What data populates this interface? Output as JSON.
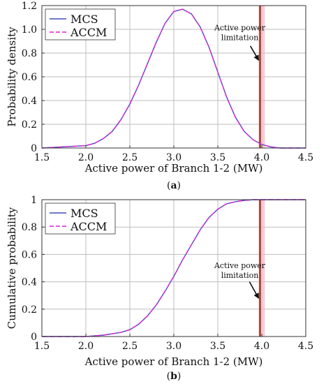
{
  "colors": {
    "mcs": "#3a4fbf",
    "accm": "#e01fd0",
    "limit_line": "#8a2a0a",
    "limit_band": "#f4b6c8"
  },
  "chart_data": [
    {
      "id": "a",
      "type": "line",
      "caption_letter": "a",
      "xlabel": "Active power of Branch 1-2 (MW)",
      "ylabel": "Probability density",
      "xlim": [
        1.5,
        4.5
      ],
      "ylim": [
        0,
        1.2
      ],
      "xticks": [
        1.5,
        2.0,
        2.5,
        3.0,
        3.5,
        4.0,
        4.5
      ],
      "xtick_labels": [
        "1.5",
        "2.0",
        "2.5",
        "3.0",
        "3.5",
        "4.0",
        "4.5"
      ],
      "yticks": [
        0,
        0.2,
        0.4,
        0.6,
        0.8,
        1.0,
        1.2
      ],
      "ytick_labels": [
        "0",
        "0.2",
        "0.4",
        "0.6",
        "0.8",
        "1.0",
        "1.2"
      ],
      "grid": true,
      "legend_position": "top-left",
      "series": [
        {
          "name": "MCS",
          "style": "solid",
          "x": [
            1.5,
            2.0,
            2.1,
            2.2,
            2.3,
            2.4,
            2.5,
            2.6,
            2.7,
            2.8,
            2.9,
            3.0,
            3.1,
            3.2,
            3.3,
            3.4,
            3.5,
            3.6,
            3.7,
            3.8,
            3.9,
            4.0,
            4.1,
            4.2,
            4.5
          ],
          "y": [
            0.0,
            0.02,
            0.04,
            0.08,
            0.14,
            0.24,
            0.37,
            0.53,
            0.71,
            0.89,
            1.05,
            1.15,
            1.17,
            1.13,
            1.02,
            0.85,
            0.64,
            0.43,
            0.26,
            0.14,
            0.07,
            0.03,
            0.01,
            0.0,
            0.0
          ]
        },
        {
          "name": "ACCM",
          "style": "dashed",
          "x": [
            1.5,
            2.0,
            2.1,
            2.2,
            2.3,
            2.4,
            2.5,
            2.6,
            2.7,
            2.8,
            2.9,
            3.0,
            3.1,
            3.2,
            3.3,
            3.4,
            3.5,
            3.6,
            3.7,
            3.8,
            3.9,
            4.0,
            4.1,
            4.2,
            4.5
          ],
          "y": [
            0.0,
            0.02,
            0.04,
            0.08,
            0.14,
            0.24,
            0.37,
            0.53,
            0.71,
            0.89,
            1.05,
            1.15,
            1.17,
            1.13,
            1.02,
            0.85,
            0.64,
            0.43,
            0.26,
            0.14,
            0.07,
            0.03,
            0.01,
            0.0,
            0.0
          ]
        }
      ],
      "vline": 3.98,
      "annotation": {
        "lines": [
          "Active power",
          "limitation"
        ],
        "text_x": 3.75,
        "text_y": 0.99,
        "arrow_from": [
          3.87,
          0.86
        ],
        "arrow_to": [
          3.98,
          0.74
        ]
      }
    },
    {
      "id": "b",
      "type": "line",
      "caption_letter": "b",
      "xlabel": "Active power of Branch 1-2 (MW)",
      "ylabel": "Cumulative probability",
      "xlim": [
        1.5,
        4.5
      ],
      "ylim": [
        0,
        1.0
      ],
      "xticks": [
        1.5,
        2.0,
        2.5,
        3.0,
        3.5,
        4.0,
        4.5
      ],
      "xtick_labels": [
        "1.5",
        "2.0",
        "2.5",
        "3.0",
        "3.5",
        "4.0",
        "4.5"
      ],
      "yticks": [
        0,
        0.2,
        0.4,
        0.6,
        0.8,
        1.0
      ],
      "ytick_labels": [
        "0",
        "0.2",
        "0.4",
        "0.6",
        "0.8",
        "1"
      ],
      "grid": true,
      "legend_position": "top-left",
      "series": [
        {
          "name": "MCS",
          "style": "solid",
          "x": [
            1.5,
            2.0,
            2.2,
            2.4,
            2.5,
            2.6,
            2.7,
            2.8,
            2.9,
            3.0,
            3.1,
            3.2,
            3.3,
            3.4,
            3.5,
            3.6,
            3.7,
            3.8,
            3.9,
            4.0,
            4.2,
            4.5
          ],
          "y": [
            0.0,
            0.0,
            0.01,
            0.03,
            0.05,
            0.09,
            0.15,
            0.23,
            0.33,
            0.44,
            0.56,
            0.67,
            0.78,
            0.87,
            0.93,
            0.97,
            0.985,
            0.995,
            1.0,
            1.0,
            1.0,
            1.0
          ]
        },
        {
          "name": "ACCM",
          "style": "dashed",
          "x": [
            1.5,
            2.0,
            2.2,
            2.4,
            2.5,
            2.6,
            2.7,
            2.8,
            2.9,
            3.0,
            3.1,
            3.2,
            3.3,
            3.4,
            3.5,
            3.6,
            3.7,
            3.8,
            3.9,
            4.0,
            4.2,
            4.5
          ],
          "y": [
            0.0,
            0.0,
            0.01,
            0.03,
            0.05,
            0.09,
            0.15,
            0.23,
            0.33,
            0.44,
            0.56,
            0.67,
            0.78,
            0.87,
            0.93,
            0.97,
            0.985,
            0.995,
            1.0,
            1.0,
            1.0,
            1.0
          ]
        }
      ],
      "vline": 3.98,
      "annotation": {
        "lines": [
          "Active power",
          "limitation"
        ],
        "text_x": 3.75,
        "text_y": 0.5,
        "arrow_from": [
          3.86,
          0.4
        ],
        "arrow_to": [
          3.98,
          0.28
        ]
      }
    }
  ]
}
